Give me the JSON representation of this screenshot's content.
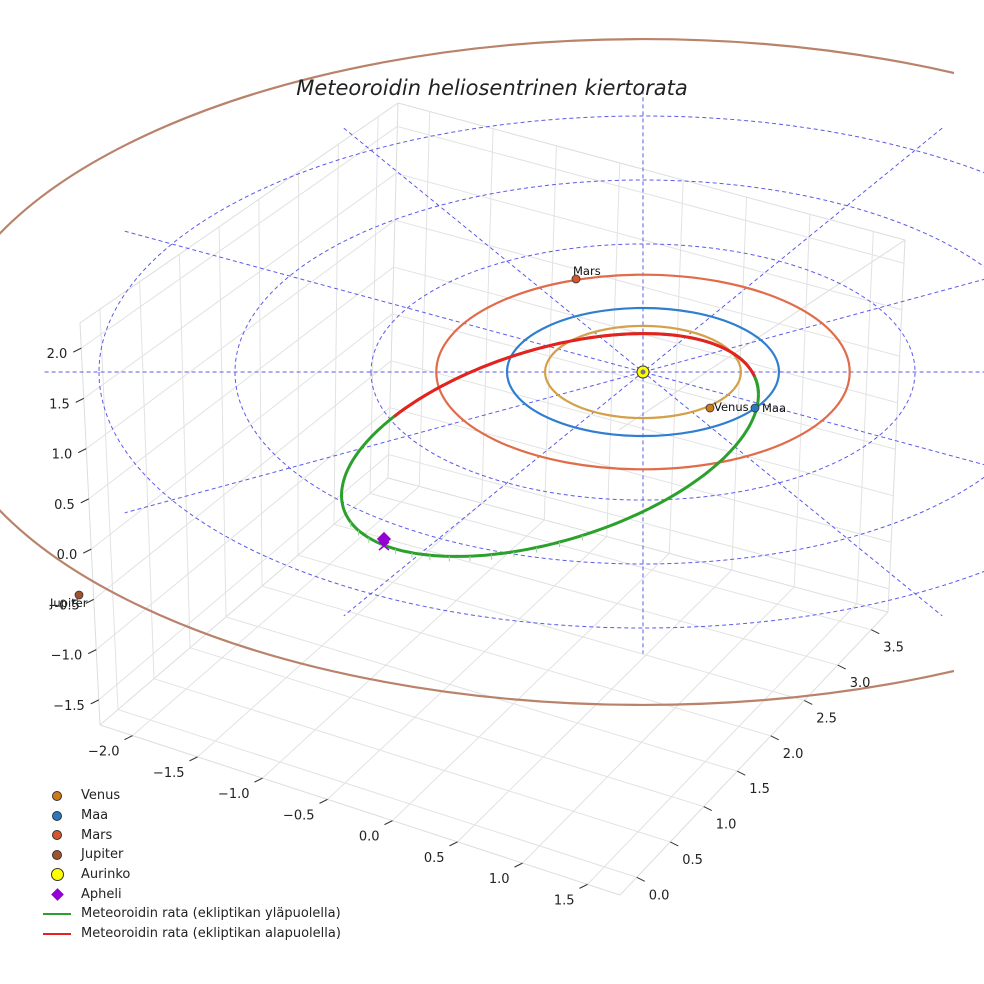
{
  "chart_data": {
    "type": "line3d",
    "title": "Meteoroidin heliosentrinen kiertorata",
    "x_ticks": [
      "−2.0",
      "−1.5",
      "−1.0",
      "−0.5",
      "0.0",
      "0.5",
      "1.0",
      "1.5"
    ],
    "y_ticks": [
      "0.0",
      "0.5",
      "1.0",
      "1.5",
      "2.0",
      "2.5",
      "3.0",
      "3.5"
    ],
    "z_ticks": [
      "2.0",
      "1.5",
      "1.0",
      "0.5",
      "0.0",
      "−0.5",
      "−1.0",
      "−1.5"
    ],
    "grid": true,
    "planets": [
      {
        "name": "Venus",
        "orbit_radius": 0.72,
        "color": "#d4a04a",
        "marker_color": "#cc7a1a",
        "label": "Venus"
      },
      {
        "name": "Maa",
        "orbit_radius": 1.0,
        "color": "#2f7fd0",
        "marker_color": "#2b78c2",
        "label": "Maa"
      },
      {
        "name": "Mars",
        "orbit_radius": 1.52,
        "color": "#e06c4a",
        "marker_color": "#d4562a",
        "label": "Mars"
      },
      {
        "name": "Jupiter",
        "orbit_radius": 5.2,
        "color": "#b9826a",
        "marker_color": "#a0522d",
        "label": "Jupiter"
      }
    ],
    "sun": {
      "name": "Aurinko",
      "color": "#ffff00"
    },
    "aphelion": {
      "name": "Apheli",
      "color": "#9400d3"
    },
    "meteoroid_orbit": {
      "above_ecliptic": {
        "name": "Meteoroidin rata (ekliptikan yläpuolella)",
        "color": "#2ca02c"
      },
      "below_ecliptic": {
        "name": "Meteoroidin rata (ekliptikan alapuolella)",
        "color": "#e82020"
      }
    },
    "reference_rings": [
      1,
      2,
      3,
      4
    ],
    "legend_position": "bottom-left"
  },
  "legend": [
    {
      "label": "Venus",
      "kind": "dot",
      "color": "#cc7a1a"
    },
    {
      "label": "Maa",
      "kind": "dot",
      "color": "#2b78c2"
    },
    {
      "label": "Mars",
      "kind": "dot",
      "color": "#d4562a"
    },
    {
      "label": "Jupiter",
      "kind": "dot",
      "color": "#a0522d"
    },
    {
      "label": "Aurinko",
      "kind": "sun",
      "color": "#ffff00"
    },
    {
      "label": "Apheli",
      "kind": "diamond",
      "color": "#9400d3"
    },
    {
      "label": "Meteoroidin rata (ekliptikan yläpuolella)",
      "kind": "line",
      "color": "#2ca02c"
    },
    {
      "label": "Meteoroidin rata (ekliptikan alapuolella)",
      "kind": "line",
      "color": "#e82020"
    }
  ]
}
